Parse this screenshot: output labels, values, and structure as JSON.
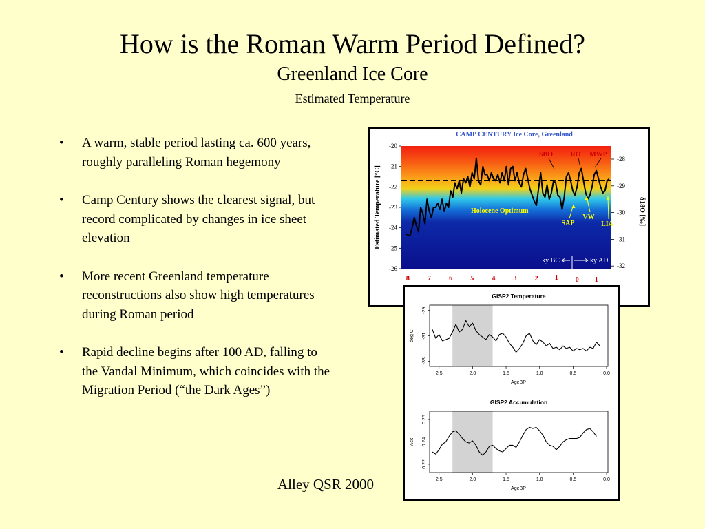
{
  "slide": {
    "title": "How is the Roman Warm Period Defined?",
    "subtitle": "Greenland Ice Core",
    "subsubtitle": "Estimated Temperature",
    "bullets": [
      "A warm, stable period lasting ca. 600 years, roughly paralleling Roman hegemony",
      "Camp Century shows the  clearest signal, but record complicated by changes in ice sheet elevation",
      "More recent Greenland temperature reconstructions also show high temperatures during Roman period",
      "Rapid decline begins after 100 AD, falling to the Vandal Minimum, which coincides with the Migration Period (“the Dark Ages”)"
    ],
    "credit": "Alley QSR 2000",
    "bullet_glyph": "•",
    "background_color": "#FFFFCC"
  },
  "chart_data": [
    {
      "id": "camp-century",
      "type": "line",
      "title": "CAMP CENTURY Ice Core, Greenland",
      "ylabel": "Estimated Temperature [°C]",
      "y2label": "δ18O [‰]",
      "ylim": [
        -26,
        -20
      ],
      "yticks": [
        -20,
        -21,
        -22,
        -23,
        -24,
        -25,
        -26
      ],
      "y2ticks": [
        "-28",
        "-29",
        "-30",
        "-31",
        "-32"
      ],
      "xlim": [
        8.3,
        -1.5
      ],
      "xticks_bc": [
        "8",
        "7",
        "6",
        "5",
        "4",
        "3",
        "2",
        "1"
      ],
      "xticks_ad": [
        "0",
        "1"
      ],
      "x_unit_labels": [
        "ky BC",
        "ky AD"
      ],
      "reference_line": -21.7,
      "band_label": "Holocene Optimum",
      "annotations": [
        "SBO",
        "RO",
        "MWP",
        "SAP",
        "VW",
        "LIA"
      ],
      "colors": {
        "title": "#3355CC",
        "curve": "#000000",
        "ticks_x": "#CC0000",
        "annot_upper": "#CC0000",
        "annot_lower": "#FFFF00"
      },
      "x": [
        8.1,
        7.9,
        7.8,
        7.7,
        7.6,
        7.5,
        7.4,
        7.3,
        7.2,
        7.1,
        7.0,
        6.9,
        6.8,
        6.7,
        6.6,
        6.5,
        6.4,
        6.3,
        6.2,
        6.1,
        6.0,
        5.9,
        5.8,
        5.7,
        5.6,
        5.5,
        5.4,
        5.3,
        5.2,
        5.1,
        5.0,
        4.9,
        4.8,
        4.7,
        4.6,
        4.5,
        4.4,
        4.3,
        4.2,
        4.1,
        4.0,
        3.9,
        3.8,
        3.7,
        3.6,
        3.5,
        3.4,
        3.3,
        3.2,
        3.1,
        3.0,
        2.9,
        2.8,
        2.7,
        2.6,
        2.5,
        2.4,
        2.3,
        2.2,
        2.1,
        2.0,
        1.9,
        1.8,
        1.7,
        1.6,
        1.5,
        1.4,
        1.3,
        1.2,
        1.1,
        1.0,
        0.9,
        0.8,
        0.7,
        0.6,
        0.5,
        0.4,
        0.3,
        0.2,
        0.1,
        0.0,
        -0.1,
        -0.2,
        -0.3,
        -0.4,
        -0.5,
        -0.6,
        -0.7,
        -0.8,
        -0.9,
        -1.0,
        -1.1,
        -1.2,
        -1.3,
        -1.4
      ],
      "y": [
        -24.3,
        -24.4,
        -24.0,
        -23.5,
        -23.9,
        -24.2,
        -23.0,
        -23.3,
        -23.8,
        -22.6,
        -23.2,
        -23.5,
        -23.0,
        -23.0,
        -22.8,
        -23.1,
        -22.6,
        -23.2,
        -22.8,
        -23.0,
        -22.2,
        -22.5,
        -21.8,
        -22.1,
        -21.7,
        -22.3,
        -21.6,
        -21.8,
        -21.5,
        -22.0,
        -21.3,
        -21.6,
        -20.6,
        -21.7,
        -21.9,
        -21.0,
        -21.4,
        -21.4,
        -21.7,
        -21.3,
        -21.6,
        -21.7,
        -21.4,
        -21.8,
        -21.3,
        -21.7,
        -21.0,
        -21.9,
        -21.1,
        -21.0,
        -21.7,
        -21.3,
        -21.8,
        -22.0,
        -21.4,
        -21.1,
        -21.6,
        -22.1,
        -22.4,
        -22.7,
        -22.9,
        -22.1,
        -21.3,
        -22.3,
        -22.5,
        -21.9,
        -22.6,
        -22.3,
        -21.7,
        -21.8,
        -22.4,
        -22.5,
        -23.1,
        -22.5,
        -21.5,
        -21.3,
        -21.7,
        -22.2,
        -22.4,
        -22.0,
        -21.3,
        -21.1,
        -21.7,
        -22.3,
        -22.6,
        -22.4,
        -22.0,
        -21.4,
        -21.2,
        -21.6,
        -22.0,
        -22.3,
        -22.2,
        -21.7,
        -21.6
      ]
    },
    {
      "id": "gisp2-temperature",
      "type": "line",
      "title": "GISP2 Temperature",
      "xlabel": "AgeBP",
      "ylabel": "deg C",
      "xlim": [
        2.6,
        0.0
      ],
      "ylim": [
        -33.2,
        -28.8
      ],
      "xticks": [
        "2.5",
        "2.0",
        "1.5",
        "1.0",
        "0.5",
        "0.0"
      ],
      "yticks": [
        "-29",
        "-31",
        "-33"
      ],
      "highlight_x": [
        2.3,
        1.7
      ],
      "highlight_color": "#D3D3D3",
      "x": [
        2.6,
        2.55,
        2.5,
        2.45,
        2.4,
        2.35,
        2.3,
        2.25,
        2.2,
        2.15,
        2.1,
        2.05,
        2.0,
        1.95,
        1.9,
        1.85,
        1.8,
        1.75,
        1.7,
        1.65,
        1.6,
        1.55,
        1.5,
        1.45,
        1.4,
        1.35,
        1.3,
        1.25,
        1.2,
        1.15,
        1.1,
        1.05,
        1.0,
        0.95,
        0.9,
        0.85,
        0.8,
        0.75,
        0.7,
        0.65,
        0.6,
        0.55,
        0.5,
        0.45,
        0.4,
        0.35,
        0.3,
        0.25,
        0.2,
        0.15,
        0.1
      ],
      "y": [
        -30.5,
        -31.2,
        -30.9,
        -31.4,
        -31.3,
        -31.2,
        -30.7,
        -30.1,
        -30.7,
        -30.5,
        -29.8,
        -30.3,
        -30.0,
        -30.6,
        -30.9,
        -31.1,
        -31.3,
        -30.9,
        -31.1,
        -31.4,
        -30.9,
        -30.8,
        -31.1,
        -31.6,
        -31.9,
        -32.3,
        -32.0,
        -31.6,
        -31.0,
        -30.8,
        -31.4,
        -31.7,
        -31.3,
        -31.5,
        -31.8,
        -31.6,
        -32.0,
        -31.9,
        -32.1,
        -31.8,
        -32.0,
        -31.9,
        -32.2,
        -32.0,
        -32.1,
        -32.0,
        -32.2,
        -31.9,
        -32.0,
        -31.5,
        -31.8
      ]
    },
    {
      "id": "gisp2-accumulation",
      "type": "line",
      "title": "GISP2 Accumulation",
      "xlabel": "AgeBP",
      "ylabel": "Acc",
      "xlim": [
        2.6,
        0.0
      ],
      "ylim": [
        0.215,
        0.265
      ],
      "xticks": [
        "2.5",
        "2.0",
        "1.5",
        "1.0",
        "0.5",
        "0.0"
      ],
      "yticks": [
        "0.22",
        "0.24",
        "0.26"
      ],
      "highlight_x": [
        2.3,
        1.7
      ],
      "highlight_color": "#D3D3D3",
      "x": [
        2.6,
        2.55,
        2.5,
        2.45,
        2.4,
        2.35,
        2.3,
        2.25,
        2.2,
        2.15,
        2.1,
        2.05,
        2.0,
        1.95,
        1.9,
        1.85,
        1.8,
        1.75,
        1.7,
        1.65,
        1.6,
        1.55,
        1.5,
        1.45,
        1.4,
        1.35,
        1.3,
        1.25,
        1.2,
        1.15,
        1.1,
        1.05,
        1.0,
        0.95,
        0.9,
        0.85,
        0.8,
        0.75,
        0.7,
        0.65,
        0.6,
        0.55,
        0.5,
        0.45,
        0.4,
        0.35,
        0.3,
        0.25,
        0.2,
        0.15
      ],
      "y": [
        0.231,
        0.229,
        0.233,
        0.238,
        0.24,
        0.245,
        0.249,
        0.25,
        0.247,
        0.243,
        0.24,
        0.239,
        0.241,
        0.237,
        0.231,
        0.228,
        0.231,
        0.236,
        0.237,
        0.234,
        0.232,
        0.231,
        0.234,
        0.237,
        0.237,
        0.235,
        0.24,
        0.246,
        0.251,
        0.253,
        0.252,
        0.253,
        0.25,
        0.246,
        0.24,
        0.237,
        0.236,
        0.233,
        0.236,
        0.24,
        0.242,
        0.243,
        0.243,
        0.243,
        0.244,
        0.248,
        0.251,
        0.252,
        0.249,
        0.245
      ]
    }
  ]
}
